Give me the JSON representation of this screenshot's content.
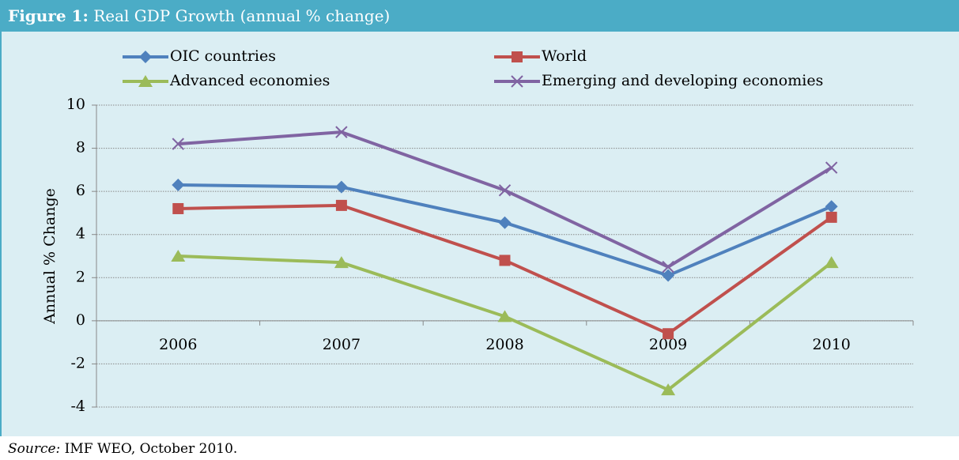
{
  "chart_data": {
    "type": "line",
    "figure_label": "Figure 1:",
    "title": "Real GDP Growth (annual % change)",
    "ylabel": "Annual % Change",
    "categories": [
      "2006",
      "2007",
      "2008",
      "2009",
      "2010"
    ],
    "series": [
      {
        "name": "OIC countries",
        "color": "#4f81bd",
        "marker": "diamond",
        "values": [
          6.3,
          6.2,
          4.55,
          2.1,
          5.3
        ]
      },
      {
        "name": "World",
        "color": "#c0504d",
        "marker": "square",
        "values": [
          5.2,
          5.35,
          2.8,
          -0.6,
          4.8
        ]
      },
      {
        "name": "Advanced economies",
        "color": "#9bbb59",
        "marker": "triangle",
        "values": [
          3.0,
          2.7,
          0.2,
          -3.2,
          2.7
        ]
      },
      {
        "name": "Emerging and developing economies",
        "color": "#8064a2",
        "marker": "x",
        "values": [
          8.2,
          8.75,
          6.05,
          2.5,
          7.1
        ]
      }
    ],
    "ylim": [
      -4,
      10
    ],
    "yticks": [
      -4,
      -2,
      0,
      2,
      4,
      6,
      8,
      10
    ],
    "grid": true,
    "source_label": "Source:",
    "source": "IMF WEO, October 2010."
  }
}
